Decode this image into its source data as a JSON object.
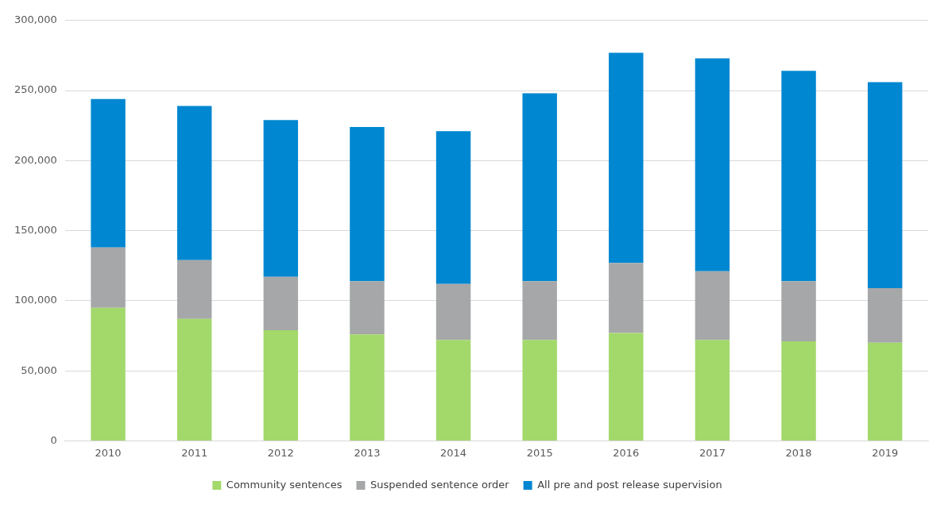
{
  "chart_data": {
    "type": "bar",
    "stacked": true,
    "categories": [
      "2010",
      "2011",
      "2012",
      "2013",
      "2014",
      "2015",
      "2016",
      "2017",
      "2018",
      "2019"
    ],
    "series": [
      {
        "name": "Community sentences",
        "color": "#a3d86b",
        "values": [
          95000,
          87000,
          79000,
          76000,
          72000,
          72000,
          77000,
          72000,
          71000,
          70000
        ]
      },
      {
        "name": "Suspended sentence order",
        "color": "#a5a7a8",
        "values": [
          43000,
          42000,
          38000,
          38000,
          40000,
          42000,
          50000,
          49000,
          43000,
          39000
        ]
      },
      {
        "name": "All pre and post release supervision",
        "color": "#0087d1",
        "values": [
          106000,
          110000,
          112000,
          110000,
          109000,
          134000,
          150000,
          152000,
          150000,
          147000
        ]
      }
    ],
    "ylim": [
      0,
      300000
    ],
    "yticks": [
      0,
      {
        "value": 50000,
        "label": "50,000"
      },
      {
        "value": 100000,
        "label": "100,000"
      },
      {
        "value": 150000,
        "label": "150,000"
      },
      {
        "value": 200000,
        "label": "200,000"
      },
      {
        "value": 250000,
        "label": "250,000"
      },
      {
        "value": 300000,
        "label": "300,000"
      }
    ],
    "grid": "y",
    "legend": "bottom"
  }
}
